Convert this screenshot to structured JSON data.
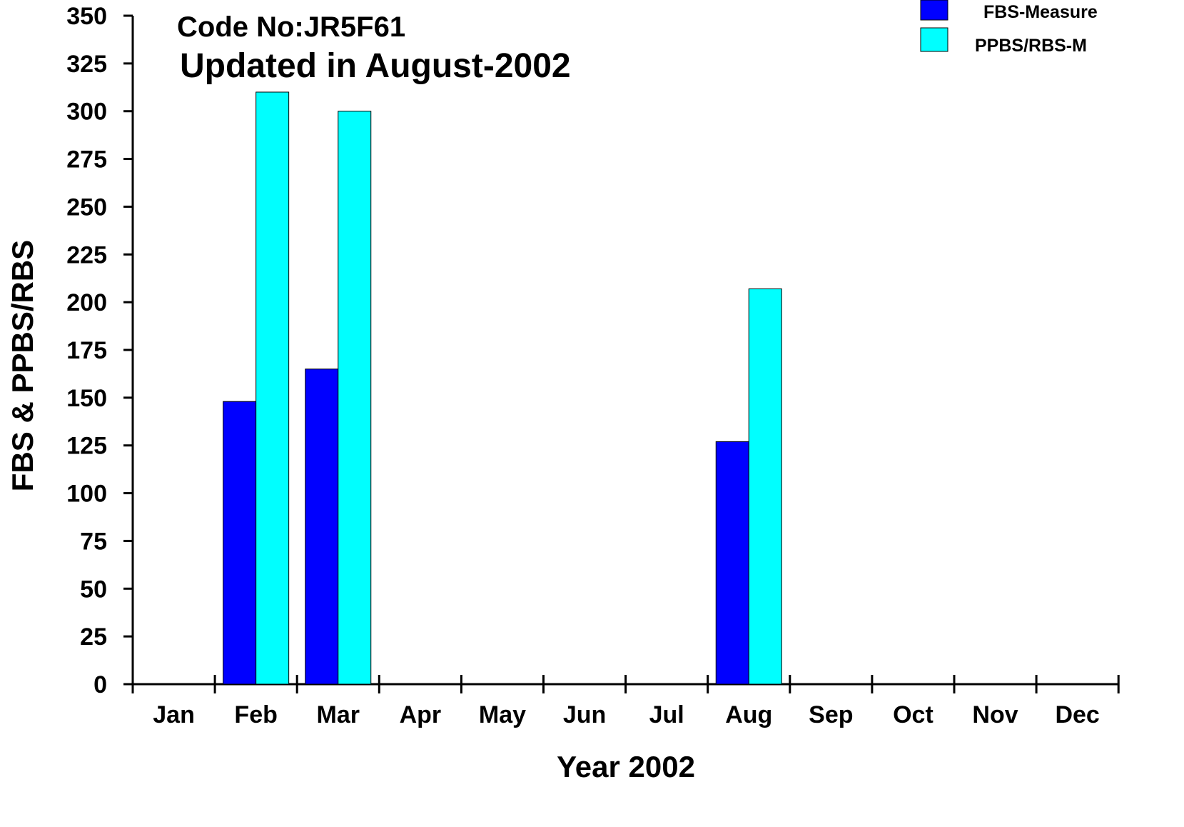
{
  "chart_data": {
    "type": "bar",
    "annotations": [
      "Code No:JR5F61",
      "Updated in August-2002"
    ],
    "xlabel": "Year 2002",
    "ylabel": "FBS & PPBS/RBS",
    "categories": [
      "Jan",
      "Feb",
      "Mar",
      "Apr",
      "May",
      "Jun",
      "Jul",
      "Aug",
      "Sep",
      "Oct",
      "Nov",
      "Dec"
    ],
    "ylim": [
      0,
      350
    ],
    "yticks": [
      "0",
      "25",
      "50",
      "75",
      "100",
      "125",
      "150",
      "175",
      "200",
      "225",
      "250",
      "275",
      "300",
      "325",
      "350"
    ],
    "series": [
      {
        "name": "FBS-Measure",
        "color": "#0000ff",
        "values": [
          null,
          148,
          165,
          null,
          null,
          null,
          null,
          127,
          null,
          null,
          null,
          null
        ]
      },
      {
        "name": "PPBS/RBS-M",
        "color": "#00ffff",
        "values": [
          null,
          310,
          300,
          null,
          null,
          null,
          null,
          207,
          null,
          null,
          null,
          null
        ]
      }
    ],
    "legend_position": "top-right",
    "grid": false
  }
}
